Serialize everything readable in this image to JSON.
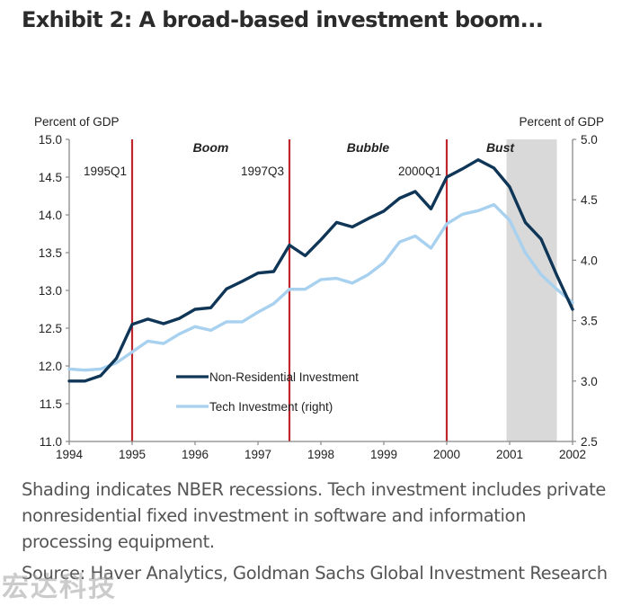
{
  "title": "Exhibit 2: A broad-based investment boom...",
  "caption": "Shading indicates NBER recessions. Tech investment includes private nonresidential fixed investment in software and information processing equipment.",
  "source": "Source: Haver Analytics, Goldman Sachs Global Investment Research",
  "watermark": "宏达科技",
  "chart_data": {
    "type": "line",
    "title": "",
    "xlabel": "",
    "ylabel": "Percent of GDP",
    "y2label": "Percent of GDP",
    "xlim": [
      1994,
      2002
    ],
    "ylim": [
      11.0,
      15.0
    ],
    "y2lim": [
      2.5,
      5.0
    ],
    "x_ticks": [
      "1994",
      "1995",
      "1996",
      "1997",
      "1998",
      "1999",
      "2000",
      "2001",
      "2002"
    ],
    "y_ticks": [
      "11.0",
      "11.5",
      "12.0",
      "12.5",
      "13.0",
      "13.5",
      "14.0",
      "14.5",
      "15.0"
    ],
    "y2_ticks": [
      "2.5",
      "3.0",
      "3.5",
      "4.0",
      "4.5",
      "5.0"
    ],
    "grid": false,
    "legend_position": "bottom-center",
    "x": [
      1994.0,
      1994.25,
      1994.5,
      1994.75,
      1995.0,
      1995.25,
      1995.5,
      1995.75,
      1996.0,
      1996.25,
      1996.5,
      1996.75,
      1997.0,
      1997.25,
      1997.5,
      1997.75,
      1998.0,
      1998.25,
      1998.5,
      1998.75,
      1999.0,
      1999.25,
      1999.5,
      1999.75,
      2000.0,
      2000.25,
      2000.5,
      2000.75,
      2001.0,
      2001.25,
      2001.5,
      2001.75,
      2002.0
    ],
    "series": [
      {
        "name": "Non-Residential Investment",
        "axis": "left",
        "color": "#0f3557",
        "values": [
          11.8,
          11.8,
          11.87,
          12.1,
          12.55,
          12.62,
          12.56,
          12.63,
          12.75,
          12.77,
          13.02,
          13.12,
          13.23,
          13.25,
          13.6,
          13.46,
          13.67,
          13.9,
          13.84,
          13.95,
          14.05,
          14.22,
          14.31,
          14.08,
          14.5,
          14.61,
          14.73,
          14.62,
          14.37,
          13.9,
          13.68,
          13.2,
          12.75
        ]
      },
      {
        "name": "Tech Investment (right)",
        "axis": "right",
        "color": "#a8d1ef",
        "values": [
          3.1,
          3.09,
          3.1,
          3.15,
          3.24,
          3.33,
          3.31,
          3.39,
          3.45,
          3.42,
          3.49,
          3.49,
          3.57,
          3.64,
          3.76,
          3.76,
          3.84,
          3.85,
          3.81,
          3.88,
          3.98,
          4.15,
          4.2,
          4.1,
          4.3,
          4.38,
          4.41,
          4.46,
          4.33,
          4.06,
          3.88,
          3.76,
          3.65
        ]
      }
    ],
    "vertical_markers": [
      {
        "x": 1995.0,
        "label": "1995Q1",
        "color": "#c0272d"
      },
      {
        "x": 1997.5,
        "label": "1997Q3",
        "color": "#c0272d"
      },
      {
        "x": 2000.0,
        "label": "2000Q1",
        "color": "#c0272d"
      }
    ],
    "eras": [
      {
        "label": "Boom",
        "x": 1996.25
      },
      {
        "label": "Bubble",
        "x": 1998.75
      },
      {
        "label": "Bust",
        "x": 2000.85
      }
    ],
    "recession_shading": {
      "start": 2000.95,
      "end": 2001.75,
      "color": "#d9d9d9"
    }
  }
}
